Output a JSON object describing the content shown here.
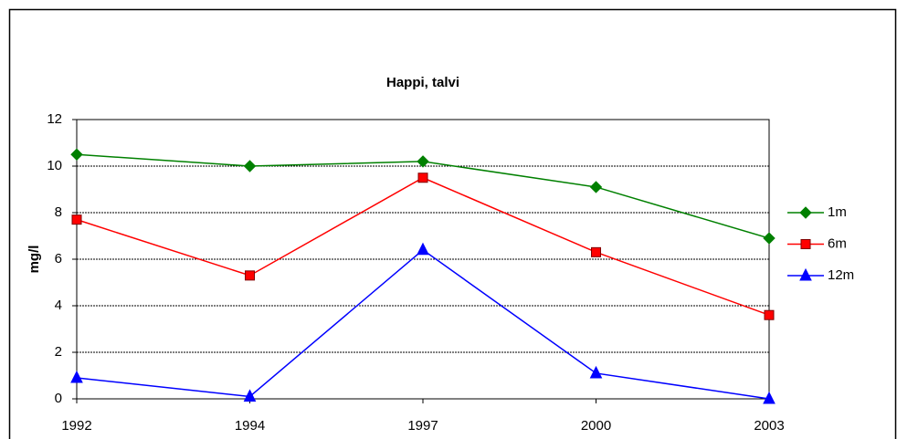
{
  "chart_data": {
    "type": "line",
    "title": "Happi, talvi",
    "y_label": "mg/l",
    "categories": [
      "1992",
      "1994",
      "1997",
      "2000",
      "2003"
    ],
    "series": [
      {
        "name": "1m",
        "color": "#008000",
        "marker": "diamond",
        "values": [
          10.5,
          10.0,
          10.2,
          9.1,
          6.9
        ]
      },
      {
        "name": "6m",
        "color": "#ff0000",
        "marker": "square",
        "values": [
          7.7,
          5.3,
          9.5,
          6.3,
          3.6
        ]
      },
      {
        "name": "12m",
        "color": "#0000ff",
        "marker": "triangle",
        "values": [
          0.9,
          0.1,
          6.4,
          1.1,
          0.0
        ]
      }
    ],
    "ylim": [
      0,
      12
    ],
    "yticks": [
      0,
      2,
      4,
      6,
      8,
      10,
      12
    ],
    "grid": true,
    "legend": "right"
  }
}
